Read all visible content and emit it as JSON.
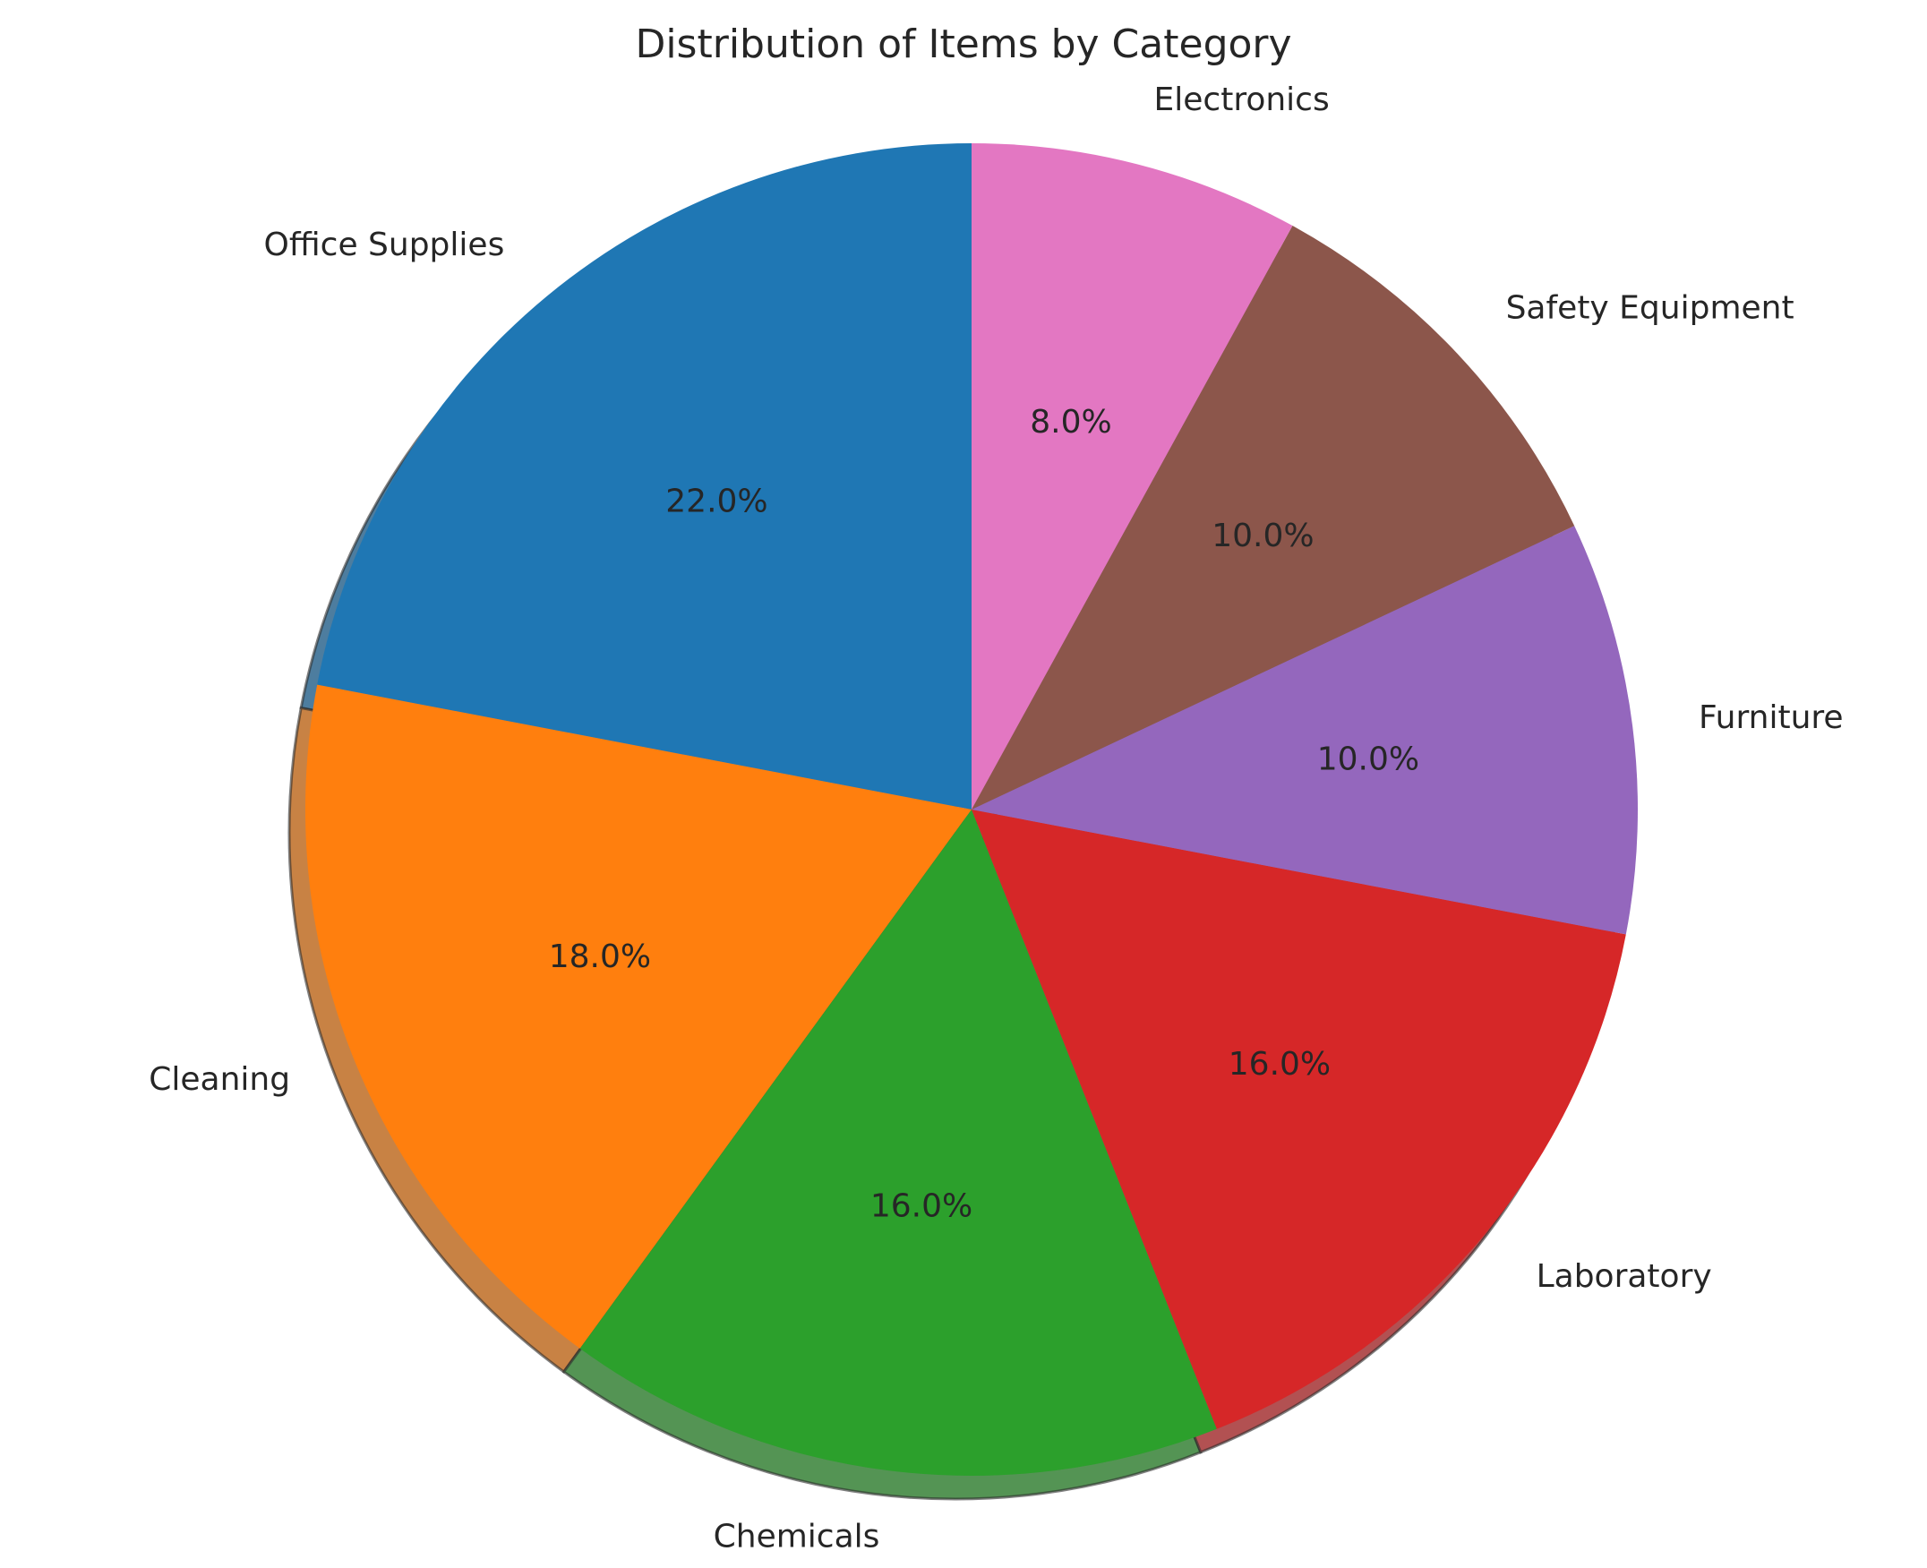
{
  "chart_data": {
    "type": "pie",
    "title": "Distribution of Items by Category",
    "categories": [
      "Office Supplies",
      "Cleaning",
      "Chemicals",
      "Laboratory",
      "Furniture",
      "Safety Equipment",
      "Electronics"
    ],
    "values": [
      22.0,
      18.0,
      16.0,
      16.0,
      10.0,
      10.0,
      8.0
    ],
    "percent_labels": [
      "22.0%",
      "18.0%",
      "16.0%",
      "16.0%",
      "10.0%",
      "10.0%",
      "8.0%"
    ],
    "colors": [
      "#1f77b4",
      "#ff7f0e",
      "#2ca02c",
      "#d62728",
      "#9467bd",
      "#8c564b",
      "#e377c2"
    ],
    "start_angle_deg": 90,
    "direction": "counterclockwise",
    "shadow": true,
    "legend": "none"
  }
}
